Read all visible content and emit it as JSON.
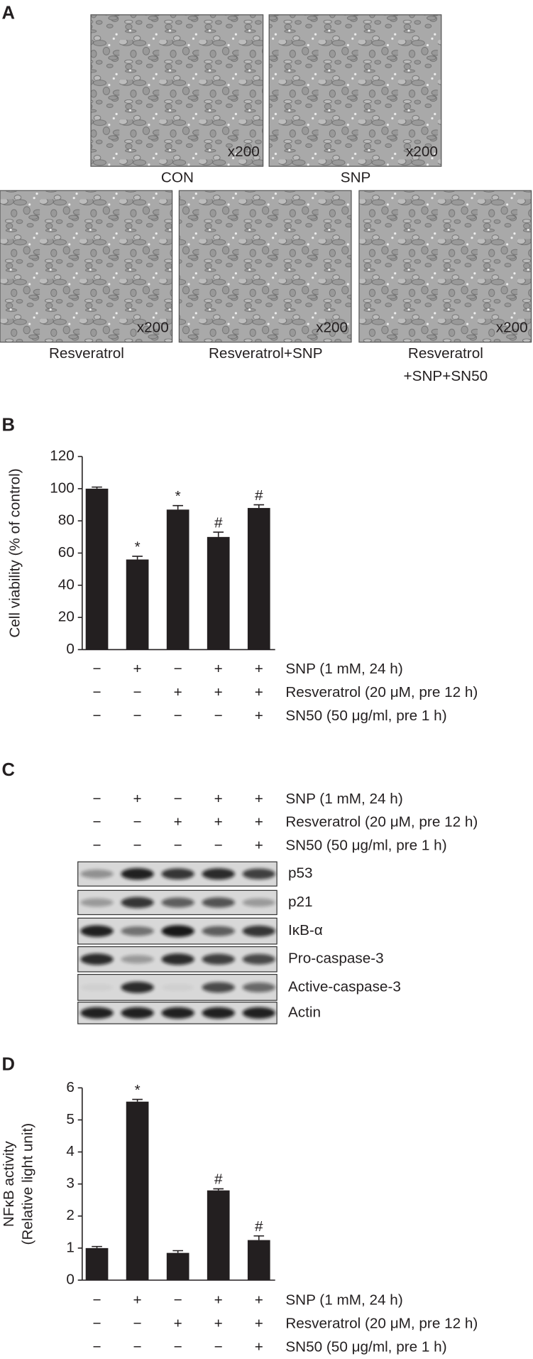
{
  "panel_a": {
    "panel_label": "A",
    "images": [
      {
        "label_lines": [
          "CON"
        ],
        "magnification": "x200"
      },
      {
        "label_lines": [
          "SNP"
        ],
        "magnification": "x200"
      },
      {
        "label_lines": [
          "Resveratrol"
        ],
        "magnification": "x200"
      },
      {
        "label_lines": [
          "Resveratrol+SNP"
        ],
        "magnification": "x200"
      },
      {
        "label_lines": [
          "Resveratrol",
          "+SNP+SN50"
        ],
        "magnification": "x200"
      }
    ]
  },
  "chart_data": [
    {
      "type": "bar",
      "panel_label": "B",
      "y_label": [
        "Cell viability (% of control)"
      ],
      "values": [
        100,
        56,
        87,
        70,
        88
      ],
      "errors": [
        1,
        2,
        2.5,
        3,
        2
      ],
      "annotations": [
        null,
        "*",
        "*",
        "#",
        "#"
      ],
      "color": "#231f20",
      "ylim": [
        0,
        120
      ],
      "yticks": [
        0,
        20,
        40,
        60,
        80,
        100,
        120
      ],
      "treatments": [
        {
          "name": "SNP (1 mM, 24 h)",
          "signs": [
            "−",
            "+",
            "−",
            "+",
            "+"
          ]
        },
        {
          "name": "Resveratrol (20 μM, pre 12 h)",
          "signs": [
            "−",
            "−",
            "+",
            "+",
            "+"
          ]
        },
        {
          "name": "SN50 (50 μg/ml, pre 1 h)",
          "signs": [
            "−",
            "−",
            "−",
            "−",
            "+"
          ]
        }
      ]
    },
    {
      "type": "bar",
      "panel_label": "D",
      "y_label": [
        "NFκB activity",
        "(Relative light unit)"
      ],
      "values": [
        1.0,
        5.57,
        0.85,
        2.8,
        1.25
      ],
      "errors": [
        0.05,
        0.07,
        0.07,
        0.05,
        0.13
      ],
      "annotations": [
        null,
        "*",
        null,
        "#",
        "#"
      ],
      "color": "#231f20",
      "ylim": [
        0,
        6
      ],
      "yticks": [
        0,
        1,
        2,
        3,
        4,
        5,
        6
      ],
      "treatments": [
        {
          "name": "SNP (1 mM, 24 h)",
          "signs": [
            "−",
            "+",
            "−",
            "+",
            "+"
          ]
        },
        {
          "name": "Resveratrol (20 μM, pre 12 h)",
          "signs": [
            "−",
            "−",
            "+",
            "+",
            "+"
          ]
        },
        {
          "name": "SN50 (50 μg/ml, pre 1 h)",
          "signs": [
            "−",
            "−",
            "−",
            "−",
            "+"
          ]
        }
      ]
    }
  ],
  "panel_c": {
    "panel_label": "C",
    "treatments": [
      {
        "name": "SNP (1 mM, 24 h)",
        "signs": [
          "−",
          "+",
          "−",
          "+",
          "+"
        ]
      },
      {
        "name": "Resveratrol (20 μM, pre 12 h)",
        "signs": [
          "−",
          "−",
          "+",
          "+",
          "+"
        ]
      },
      {
        "name": "SN50 (50 μg/ml, pre 1 h)",
        "signs": [
          "−",
          "−",
          "−",
          "−",
          "+"
        ]
      }
    ],
    "bands": [
      "p53",
      "p21",
      "IκB-α",
      "Pro-caspase-3",
      "Active-caspase-3",
      "Actin"
    ]
  }
}
